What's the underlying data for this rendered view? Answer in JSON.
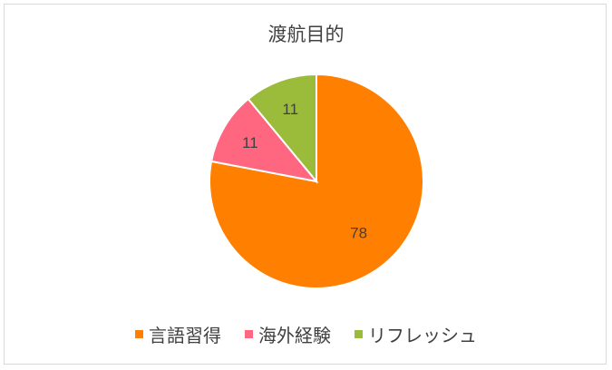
{
  "chart_data": {
    "type": "pie",
    "title": "渡航目的",
    "categories": [
      "言語習得",
      "海外経験",
      "リフレッシュ"
    ],
    "values": [
      78,
      11,
      11
    ],
    "colors": [
      "#FF7F00",
      "#FF6680",
      "#9BBB3B"
    ],
    "data_labels": [
      "78",
      "11",
      "11"
    ],
    "legend_position": "bottom",
    "start_angle": "12 o'clock, clockwise"
  }
}
